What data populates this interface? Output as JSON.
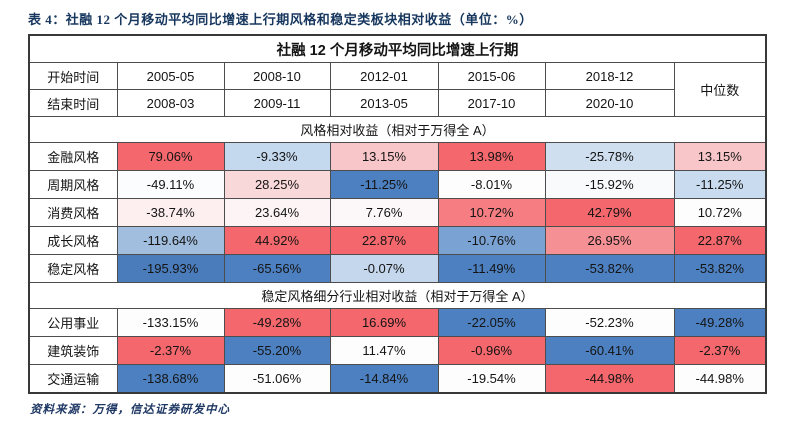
{
  "page": {
    "caption": "表 4：社融 12 个月移动平均同比增速上行期风格和稳定类板块相对收益（单位：%）",
    "source": "资料来源：万得，信达证券研发中心"
  },
  "table": {
    "header_title": "社融 12 个月移动平均同比增速上行期",
    "start_label": "开始时间",
    "end_label": "结束时间",
    "median_label": "中位数",
    "periods": [
      {
        "start": "2005-05",
        "end": "2008-03"
      },
      {
        "start": "2008-10",
        "end": "2009-11"
      },
      {
        "start": "2012-01",
        "end": "2013-05"
      },
      {
        "start": "2015-06",
        "end": "2017-10"
      },
      {
        "start": "2018-12",
        "end": "2020-10"
      }
    ],
    "sections": [
      {
        "title": "风格相对收益（相对于万得全 A）",
        "rows": [
          {
            "label": "金融风格",
            "cells": [
              {
                "v": "79.06%",
                "bg": "#f4676c"
              },
              {
                "v": "-9.33%",
                "bg": "#c5d9ee"
              },
              {
                "v": "13.15%",
                "bg": "#f8c6c9"
              },
              {
                "v": "13.98%",
                "bg": "#f4676c"
              },
              {
                "v": "-25.78%",
                "bg": "#cfdff0"
              },
              {
                "v": "13.15%",
                "bg": "#f8c6c9"
              }
            ]
          },
          {
            "label": "周期风格",
            "cells": [
              {
                "v": "-49.11%",
                "bg": "#fbfcfd"
              },
              {
                "v": "28.25%",
                "bg": "#f9d8da"
              },
              {
                "v": "-11.25%",
                "bg": "#4d80c0"
              },
              {
                "v": "-8.01%",
                "bg": "#fdfdfe"
              },
              {
                "v": "-15.92%",
                "bg": "#f9fafc"
              },
              {
                "v": "-11.25%",
                "bg": "#c9dbee"
              }
            ]
          },
          {
            "label": "消费风格",
            "cells": [
              {
                "v": "-38.74%",
                "bg": "#fdeef0"
              },
              {
                "v": "23.64%",
                "bg": "#fdf4f5"
              },
              {
                "v": "7.76%",
                "bg": "#fcf7f8"
              },
              {
                "v": "10.72%",
                "bg": "#f67e82"
              },
              {
                "v": "42.79%",
                "bg": "#f4676c"
              },
              {
                "v": "10.72%",
                "bg": "#fdfdfe"
              }
            ]
          },
          {
            "label": "成长风格",
            "cells": [
              {
                "v": "-119.64%",
                "bg": "#a2bede"
              },
              {
                "v": "44.92%",
                "bg": "#f4676c"
              },
              {
                "v": "22.87%",
                "bg": "#f4676c"
              },
              {
                "v": "-10.76%",
                "bg": "#7aa3d4"
              },
              {
                "v": "26.95%",
                "bg": "#f59094"
              },
              {
                "v": "22.87%",
                "bg": "#f4676c"
              }
            ]
          },
          {
            "label": "稳定风格",
            "cells": [
              {
                "v": "-195.93%",
                "bg": "#4a7cbb"
              },
              {
                "v": "-65.56%",
                "bg": "#4d80c0"
              },
              {
                "v": "-0.07%",
                "bg": "#c4d7ec"
              },
              {
                "v": "-11.49%",
                "bg": "#4d80c0"
              },
              {
                "v": "-53.82%",
                "bg": "#4d80c0"
              },
              {
                "v": "-53.82%",
                "bg": "#4d80c0"
              }
            ]
          }
        ]
      },
      {
        "title": "稳定风格细分行业相对收益（相对于万得全 A）",
        "rows": [
          {
            "label": "公用事业",
            "cells": [
              {
                "v": "-133.15%",
                "bg": "#fdfdfe"
              },
              {
                "v": "-49.28%",
                "bg": "#f4676c"
              },
              {
                "v": "16.69%",
                "bg": "#f4676c"
              },
              {
                "v": "-22.05%",
                "bg": "#4d80c0"
              },
              {
                "v": "-52.23%",
                "bg": "#fdfdfe"
              },
              {
                "v": "-49.28%",
                "bg": "#4d80c0"
              }
            ]
          },
          {
            "label": "建筑装饰",
            "cells": [
              {
                "v": "-2.37%",
                "bg": "#f4676c"
              },
              {
                "v": "-55.20%",
                "bg": "#4d80c0"
              },
              {
                "v": "11.47%",
                "bg": "#fdfdfe"
              },
              {
                "v": "-0.96%",
                "bg": "#f4676c"
              },
              {
                "v": "-60.41%",
                "bg": "#4d80c0"
              },
              {
                "v": "-2.37%",
                "bg": "#f4676c"
              }
            ]
          },
          {
            "label": "交通运输",
            "cells": [
              {
                "v": "-138.68%",
                "bg": "#4d80c0"
              },
              {
                "v": "-51.06%",
                "bg": "#fdfdfe"
              },
              {
                "v": "-14.84%",
                "bg": "#4d80c0"
              },
              {
                "v": "-19.54%",
                "bg": "#fdfdfe"
              },
              {
                "v": "-44.98%",
                "bg": "#f4676c"
              },
              {
                "v": "-44.98%",
                "bg": "#fdfdfe"
              }
            ]
          }
        ]
      }
    ]
  },
  "colors": {
    "caption_text": "#17375e",
    "source_text": "#1f3864",
    "positive_strong": "#f4676c",
    "negative_strong": "#4d80c0",
    "table_border": "#4d4d4d"
  },
  "chart_data": {
    "type": "table",
    "title": "社融 12 个月移动平均同比增速上行期",
    "unit": "%",
    "columns": [
      "2005-05~2008-03",
      "2008-10~2009-11",
      "2012-01~2013-05",
      "2015-06~2017-10",
      "2018-12~2020-10",
      "中位数"
    ],
    "sections": [
      {
        "name": "风格相对收益（相对于万得全 A）",
        "rows": [
          {
            "name": "金融风格",
            "values": [
              79.06,
              -9.33,
              13.15,
              13.98,
              -25.78,
              13.15
            ]
          },
          {
            "name": "周期风格",
            "values": [
              -49.11,
              28.25,
              -11.25,
              -8.01,
              -15.92,
              -11.25
            ]
          },
          {
            "name": "消费风格",
            "values": [
              -38.74,
              23.64,
              7.76,
              10.72,
              42.79,
              10.72
            ]
          },
          {
            "name": "成长风格",
            "values": [
              -119.64,
              44.92,
              22.87,
              -10.76,
              26.95,
              22.87
            ]
          },
          {
            "name": "稳定风格",
            "values": [
              -195.93,
              -65.56,
              -0.07,
              -11.49,
              -53.82,
              -53.82
            ]
          }
        ]
      },
      {
        "name": "稳定风格细分行业相对收益（相对于万得全 A）",
        "rows": [
          {
            "name": "公用事业",
            "values": [
              -133.15,
              -49.28,
              16.69,
              -22.05,
              -52.23,
              -49.28
            ]
          },
          {
            "name": "建筑装饰",
            "values": [
              -2.37,
              -55.2,
              11.47,
              -0.96,
              -60.41,
              -2.37
            ]
          },
          {
            "name": "交通运输",
            "values": [
              -138.68,
              -51.06,
              -14.84,
              -19.54,
              -44.98,
              -44.98
            ]
          }
        ]
      }
    ],
    "layout": {
      "color_scale": "red=column max, white=mid, blue=column min",
      "grid": true
    }
  }
}
